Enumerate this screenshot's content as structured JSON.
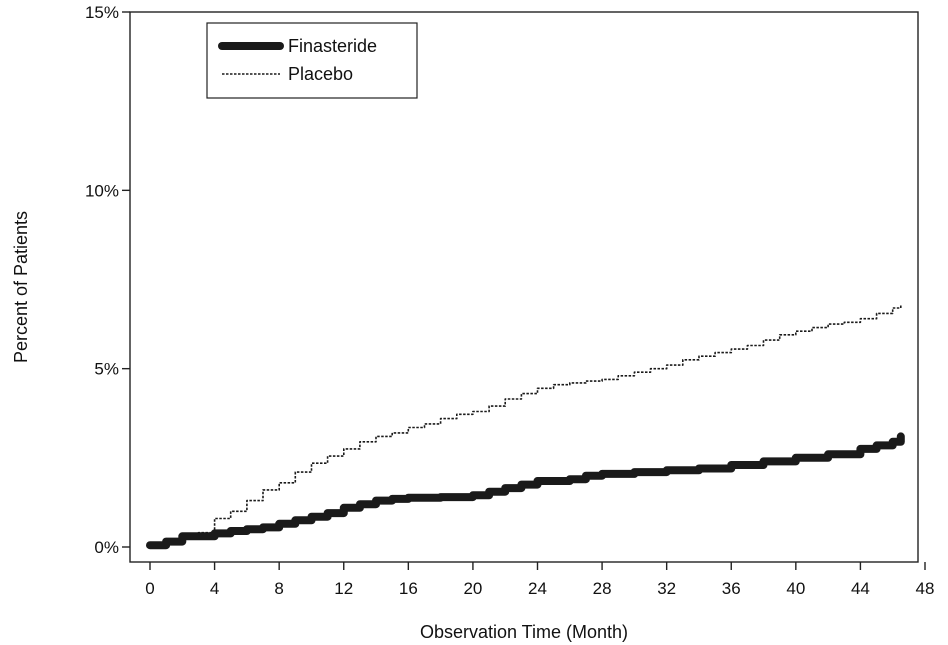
{
  "chart_data": {
    "type": "line",
    "xlabel": "Observation Time (Month)",
    "ylabel": "Percent of Patients",
    "xlim": [
      0,
      48
    ],
    "ylim": [
      0,
      15
    ],
    "x_ticks": [
      {
        "value": 0,
        "label": "0"
      },
      {
        "value": 4,
        "label": "4"
      },
      {
        "value": 8,
        "label": "8"
      },
      {
        "value": 12,
        "label": "12"
      },
      {
        "value": 16,
        "label": "16"
      },
      {
        "value": 20,
        "label": "20"
      },
      {
        "value": 24,
        "label": "24"
      },
      {
        "value": 28,
        "label": "28"
      },
      {
        "value": 32,
        "label": "32"
      },
      {
        "value": 36,
        "label": "36"
      },
      {
        "value": 40,
        "label": "40"
      },
      {
        "value": 44,
        "label": "44"
      },
      {
        "value": 48,
        "label": "48"
      }
    ],
    "y_ticks": [
      {
        "value": 0,
        "label": "0%"
      },
      {
        "value": 5,
        "label": "5%"
      },
      {
        "value": 10,
        "label": "10%"
      },
      {
        "value": 15,
        "label": "15%"
      }
    ],
    "grid": false,
    "legend_position": "top-left",
    "series": [
      {
        "name": "Finasteride",
        "style": "thick-solid",
        "color": "#1a1a1a",
        "x": [
          0,
          1,
          2,
          4,
          5,
          6,
          7,
          8,
          9,
          10,
          11,
          12,
          13,
          14,
          15,
          16,
          17,
          18,
          19,
          20,
          21,
          22,
          23,
          24,
          25,
          26,
          27,
          28,
          30,
          32,
          34,
          36,
          38,
          40,
          42,
          44,
          45,
          46,
          46.5
        ],
        "y": [
          0.05,
          0.15,
          0.3,
          0.38,
          0.45,
          0.5,
          0.55,
          0.65,
          0.75,
          0.85,
          0.95,
          1.1,
          1.2,
          1.3,
          1.35,
          1.38,
          1.38,
          1.4,
          1.4,
          1.45,
          1.55,
          1.65,
          1.75,
          1.85,
          1.85,
          1.9,
          2.0,
          2.05,
          2.1,
          2.15,
          2.2,
          2.3,
          2.4,
          2.5,
          2.6,
          2.75,
          2.85,
          2.95,
          3.1
        ]
      },
      {
        "name": "Placebo",
        "style": "thin-dashed",
        "color": "#1a1a1a",
        "x": [
          0,
          1,
          2,
          3,
          4,
          5,
          6,
          7,
          8,
          9,
          10,
          11,
          12,
          13,
          14,
          15,
          16,
          17,
          18,
          19,
          20,
          21,
          22,
          23,
          24,
          25,
          26,
          27,
          28,
          29,
          30,
          31,
          32,
          33,
          34,
          35,
          36,
          37,
          38,
          39,
          40,
          41,
          42,
          43,
          44,
          45,
          46,
          46.5
        ],
        "y": [
          0.05,
          0.15,
          0.3,
          0.4,
          0.8,
          1.0,
          1.3,
          1.6,
          1.8,
          2.1,
          2.35,
          2.55,
          2.75,
          2.95,
          3.1,
          3.2,
          3.35,
          3.45,
          3.6,
          3.72,
          3.8,
          3.95,
          4.15,
          4.3,
          4.45,
          4.55,
          4.6,
          4.65,
          4.7,
          4.8,
          4.9,
          5.0,
          5.1,
          5.25,
          5.35,
          5.45,
          5.55,
          5.65,
          5.8,
          5.95,
          6.05,
          6.15,
          6.25,
          6.3,
          6.4,
          6.55,
          6.7,
          6.78
        ]
      }
    ]
  }
}
